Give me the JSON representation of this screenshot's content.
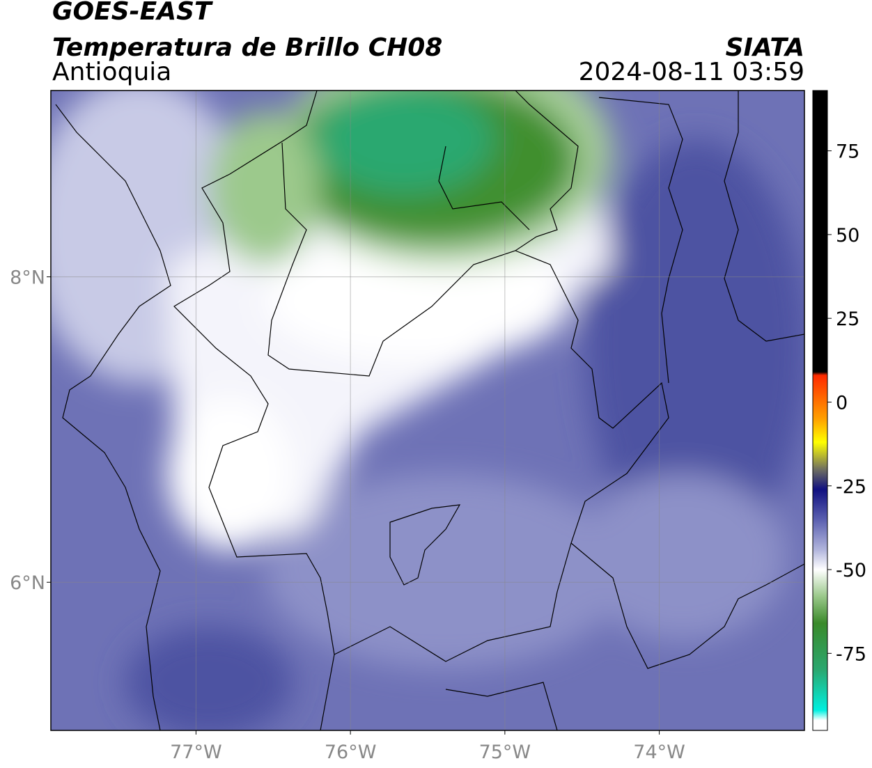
{
  "header": {
    "title": "GOES-EAST",
    "subtitle": "Temperatura de Brillo CH08",
    "region": "Antioquia",
    "source": "SIATA",
    "timestamp": "2024-08-11 03:59"
  },
  "map": {
    "xlim": [
      -77.94,
      -73.06
    ],
    "ylim": [
      5.03,
      9.22
    ],
    "xticks": [
      {
        "value": -77,
        "label": "77°W"
      },
      {
        "value": -76,
        "label": "76°W"
      },
      {
        "value": -75,
        "label": "75°W"
      },
      {
        "value": -74,
        "label": "74°W"
      }
    ],
    "yticks": [
      {
        "value": 8,
        "label": "8°N"
      },
      {
        "value": 6,
        "label": "6°N"
      }
    ],
    "grid": true
  },
  "colorbar": {
    "lim": [
      -98,
      93
    ],
    "ticks": [
      75,
      50,
      25,
      0,
      -25,
      -50,
      -75
    ],
    "stops": [
      {
        "value": 93,
        "color": "#000000"
      },
      {
        "value": 9,
        "color": "#000000"
      },
      {
        "value": 8,
        "color": "#ff2a00"
      },
      {
        "value": -5,
        "color": "#ffa000"
      },
      {
        "value": -12,
        "color": "#ffff00"
      },
      {
        "value": -20,
        "color": "#707060"
      },
      {
        "value": -26,
        "color": "#101080"
      },
      {
        "value": -35,
        "color": "#5a5fb0"
      },
      {
        "value": -44,
        "color": "#b0b4dc"
      },
      {
        "value": -50,
        "color": "#ffffff"
      },
      {
        "value": -58,
        "color": "#9ac88a"
      },
      {
        "value": -66,
        "color": "#3a8a2a"
      },
      {
        "value": -80,
        "color": "#2aa870"
      },
      {
        "value": -92,
        "color": "#00f0e0"
      },
      {
        "value": -95,
        "color": "#ffffff"
      },
      {
        "value": -98,
        "color": "#ffffff"
      }
    ]
  }
}
